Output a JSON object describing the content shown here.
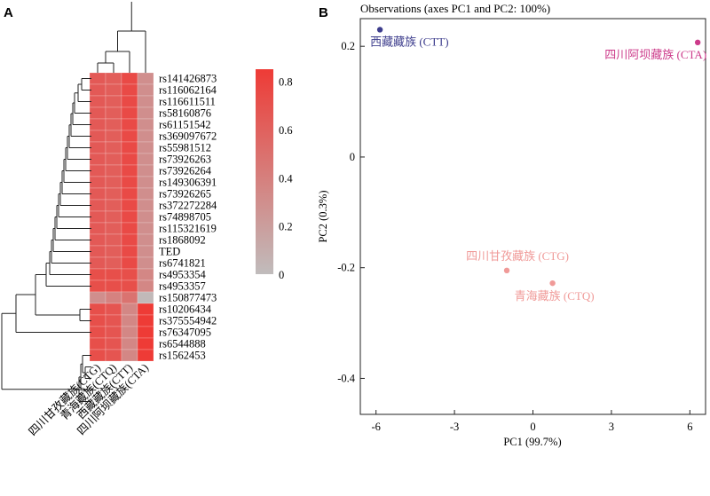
{
  "panel_a_letter": "A",
  "panel_b_letter": "B",
  "chart_data": [
    {
      "type": "heatmap",
      "title": "",
      "rows": [
        "rs141426873",
        "rs116062164",
        "rs116611511",
        "rs58160876",
        "rs61151542",
        "rs369097672",
        "rs55981512",
        "rs73926263",
        "rs73926264",
        "rs149306391",
        "rs73926265",
        "rs372272284",
        "rs74898705",
        "rs115321619",
        "rs1868092",
        "TED",
        "rs6741821",
        "rs4953354",
        "rs4953357",
        "rs150877473",
        "rs10206434",
        "rs375554942",
        "rs76347095",
        "rs6544888",
        "rs1562453"
      ],
      "columns": [
        "四川甘孜藏族(CTG)",
        "青海藏族(CTQ)",
        "西藏藏族(CTT)",
        "四川阿坝藏族(CTA)"
      ],
      "values": [
        [
          0.65,
          0.62,
          0.75,
          0.3
        ],
        [
          0.65,
          0.62,
          0.75,
          0.3
        ],
        [
          0.65,
          0.62,
          0.75,
          0.3
        ],
        [
          0.65,
          0.62,
          0.75,
          0.3
        ],
        [
          0.65,
          0.62,
          0.75,
          0.3
        ],
        [
          0.65,
          0.62,
          0.75,
          0.3
        ],
        [
          0.65,
          0.62,
          0.75,
          0.3
        ],
        [
          0.65,
          0.62,
          0.75,
          0.3
        ],
        [
          0.65,
          0.62,
          0.75,
          0.3
        ],
        [
          0.65,
          0.62,
          0.75,
          0.3
        ],
        [
          0.65,
          0.62,
          0.75,
          0.3
        ],
        [
          0.65,
          0.62,
          0.75,
          0.3
        ],
        [
          0.65,
          0.62,
          0.75,
          0.3
        ],
        [
          0.65,
          0.62,
          0.75,
          0.3
        ],
        [
          0.65,
          0.62,
          0.75,
          0.3
        ],
        [
          0.65,
          0.62,
          0.75,
          0.3
        ],
        [
          0.65,
          0.62,
          0.75,
          0.3
        ],
        [
          0.72,
          0.72,
          0.72,
          0.35
        ],
        [
          0.72,
          0.72,
          0.72,
          0.35
        ],
        [
          0.3,
          0.38,
          0.48,
          0.02
        ],
        [
          0.72,
          0.68,
          0.35,
          0.85
        ],
        [
          0.72,
          0.68,
          0.35,
          0.85
        ],
        [
          0.72,
          0.68,
          0.35,
          0.85
        ],
        [
          0.72,
          0.68,
          0.35,
          0.85
        ],
        [
          0.72,
          0.68,
          0.35,
          0.85
        ]
      ],
      "colorbar": {
        "min": 0,
        "max": 0.85,
        "ticks": [
          "0.8",
          "0.6",
          "0.4",
          "0.2",
          "0"
        ],
        "tick_values": [
          0.8,
          0.6,
          0.4,
          0.2,
          0
        ],
        "low_color": "#c0bcbc",
        "high_color": "#ee3b36"
      }
    },
    {
      "type": "scatter",
      "title": "Observations (axes PC1 and PC2: 100%)",
      "xlabel": "PC1 (99.7%)",
      "ylabel": "PC2 (0.3%)",
      "xlim": [
        -6.6,
        6.6
      ],
      "ylim": [
        -0.465,
        0.25
      ],
      "xticks": [
        "-6",
        "-3",
        "0",
        "3",
        "6"
      ],
      "xtick_values": [
        -6,
        -3,
        0,
        3,
        6
      ],
      "yticks": [
        "0.2",
        "0",
        "-0.2",
        "-0.4"
      ],
      "ytick_values": [
        0.2,
        0,
        -0.2,
        -0.4
      ],
      "points": [
        {
          "label": "西藏藏族 (CTT)",
          "x": -5.85,
          "y": 0.23,
          "color": "#3c3c8c"
        },
        {
          "label": "四川阿坝藏族 (CTA)",
          "x": 6.3,
          "y": 0.207,
          "color": "#cc3a8a"
        },
        {
          "label": "四川甘孜藏族 (CTG)",
          "x": -1.0,
          "y": -0.205,
          "color": "#f09a98"
        },
        {
          "label": "青海藏族 (CTQ)",
          "x": 0.75,
          "y": -0.228,
          "color": "#f09a98"
        }
      ]
    }
  ]
}
